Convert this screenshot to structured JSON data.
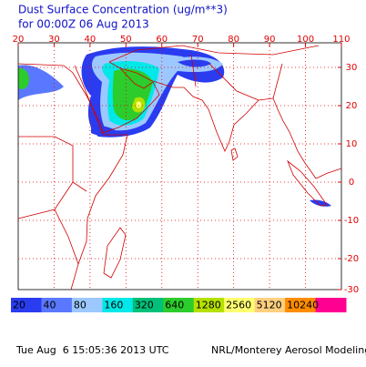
{
  "title": "Dust Surface Concentration (ug/m**3)",
  "subtitle": "for 00:00Z 06 Aug 2013",
  "lon_labels": [
    20,
    30,
    40,
    50,
    60,
    70,
    80,
    90,
    100,
    110
  ],
  "lat_labels": [
    30,
    20,
    10,
    0,
    -10,
    -20,
    -30
  ],
  "colorbar": {
    "labels": [
      20,
      40,
      80,
      160,
      320,
      640,
      1280,
      2560,
      5120,
      10240
    ],
    "colors": [
      "#2a3cf0",
      "#5a78ff",
      "#9cc8ff",
      "#00e8e8",
      "#00c07a",
      "#2ccc2c",
      "#b4e000",
      "#ffff70",
      "#ffd080",
      "#ff8c00",
      "#ff0090"
    ]
  },
  "footer_left": "Tue Aug  6 15:05:36 2013 UTC",
  "footer_right": "NRL/Monterey Aerosol Modeling"
}
